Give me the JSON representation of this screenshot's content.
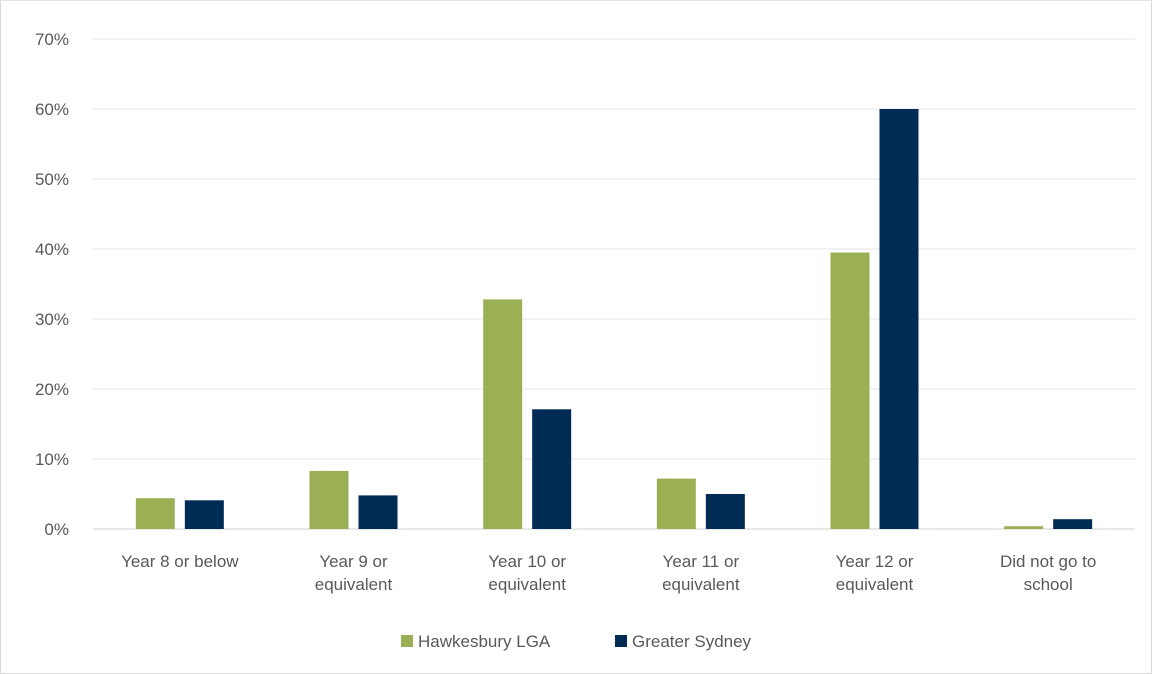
{
  "chart_data": {
    "type": "bar",
    "categories": [
      [
        "Year 8 or below"
      ],
      [
        "Year 9 or",
        "equivalent"
      ],
      [
        "Year 10 or",
        "equivalent"
      ],
      [
        "Year 11 or",
        "equivalent"
      ],
      [
        "Year 12 or",
        "equivalent"
      ],
      [
        "Did not go to",
        "school"
      ]
    ],
    "series": [
      {
        "name": "Hawkesbury LGA",
        "color": "#9bb055",
        "values": [
          4.4,
          8.3,
          32.8,
          7.2,
          39.5,
          0.4
        ]
      },
      {
        "name": "Greater Sydney",
        "color": "#002b55",
        "values": [
          4.1,
          4.8,
          17.1,
          5.0,
          60.0,
          1.4
        ]
      }
    ],
    "yticks": [
      "0%",
      "10%",
      "20%",
      "30%",
      "40%",
      "50%",
      "60%",
      "70%"
    ],
    "ylim": [
      0,
      70
    ],
    "grid": true,
    "legend_position": "bottom"
  }
}
